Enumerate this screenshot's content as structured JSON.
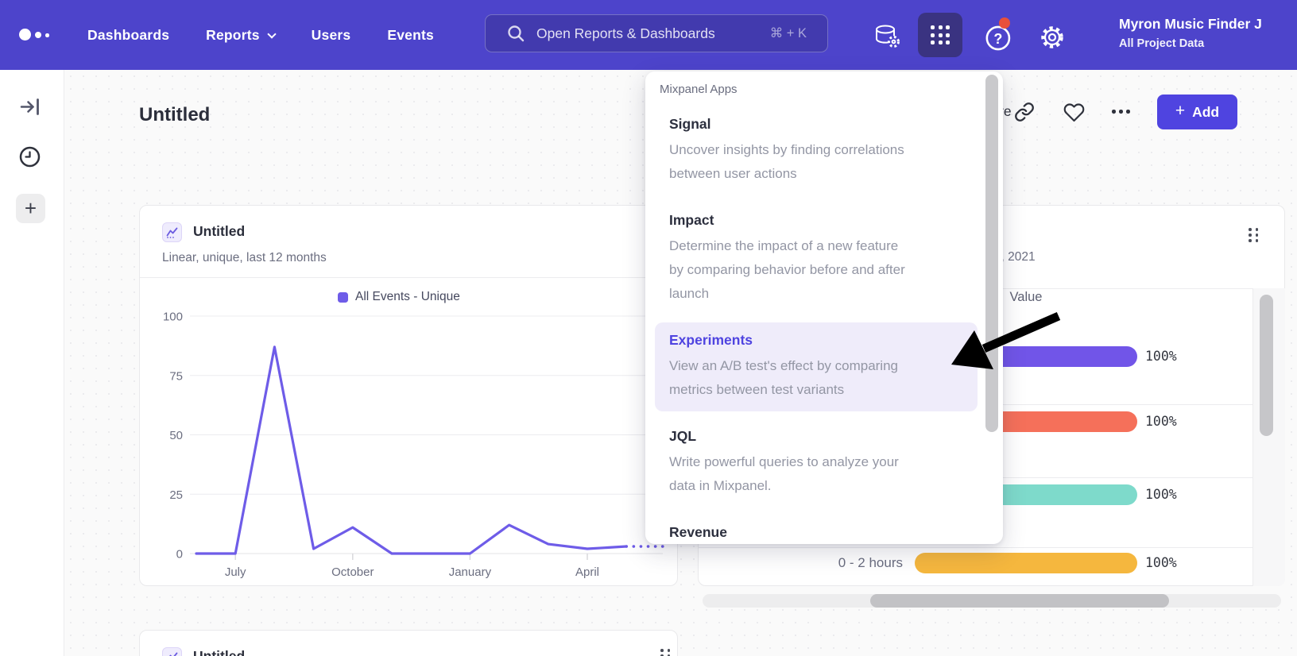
{
  "topnav": {
    "nav_items": [
      {
        "label": "Dashboards",
        "chevron": false
      },
      {
        "label": "Reports",
        "chevron": true
      },
      {
        "label": "Users",
        "chevron": false
      },
      {
        "label": "Events",
        "chevron": false
      }
    ],
    "search": {
      "placeholder": "Open Reports & Dashboards",
      "shortcut": "⌘ + K"
    },
    "user_name": "Myron Music Finder J",
    "user_project": "All Project Data"
  },
  "page": {
    "title": "Untitled"
  },
  "header_actions": {
    "share_visible_fragment": "re",
    "add_label": "Add",
    "add_plus": "+"
  },
  "apps_menu": {
    "title": "Mixpanel Apps",
    "items": [
      {
        "name": "Signal",
        "description": "Uncover insights by finding correlations\nbetween user actions",
        "highlighted": false
      },
      {
        "name": "Impact",
        "description": "Determine the impact of a new feature\nby comparing behavior before and after\nlaunch",
        "highlighted": false
      },
      {
        "name": "Experiments",
        "description": "View an A/B test's effect by comparing\nmetrics between test variants",
        "highlighted": true
      },
      {
        "name": "JQL",
        "description": "Write powerful queries to analyze your\ndata in Mixpanel.",
        "highlighted": false
      },
      {
        "name": "Revenue",
        "description": "",
        "highlighted": false
      }
    ]
  },
  "line_card": {
    "title": "Untitled",
    "subtitle": "Linear, unique, last 12 months",
    "legend": "All Events - Unique"
  },
  "table_card": {
    "date_visible_fragment": "0th, 2021",
    "column_header": "Value"
  },
  "bottom_card": {
    "title": "Untitled"
  },
  "colors": {
    "nav_bg": "#4d44cb",
    "apps_button_bg": "#3a3381",
    "accent": "#4f44e0",
    "notification_badge": "#e8503a",
    "menu_highlight_bg": "#efecfa"
  },
  "chart_data": [
    {
      "type": "line",
      "title": "Untitled",
      "subtitle": "Linear, unique, last 12 months",
      "series": [
        {
          "name": "All Events - Unique",
          "color": "#6e5ce8",
          "values": [
            0,
            0,
            87,
            2,
            11,
            0,
            0,
            0,
            12,
            4,
            2,
            3,
            3
          ]
        }
      ],
      "x_tick_labels": [
        "July",
        "October",
        "January",
        "April"
      ],
      "x_tick_indices": [
        1,
        4,
        7,
        10
      ],
      "yticks": [
        0,
        25,
        50,
        75,
        100
      ],
      "ylim": [
        0,
        100
      ],
      "grid": "horizontal",
      "legend_position": "top",
      "last_segment": "dotted"
    },
    {
      "type": "bar",
      "orientation": "horizontal",
      "column_header": "Value",
      "categories": [
        "",
        "",
        "",
        "0 - 2 hours"
      ],
      "values": [
        100,
        100,
        100,
        100
      ],
      "value_labels": [
        "100%",
        "100%",
        "100%",
        "100%"
      ],
      "bar_colors": [
        "#7155e8",
        "#f5705a",
        "#7edacb",
        "#f5b73e"
      ],
      "xlim": [
        0,
        100
      ]
    }
  ]
}
